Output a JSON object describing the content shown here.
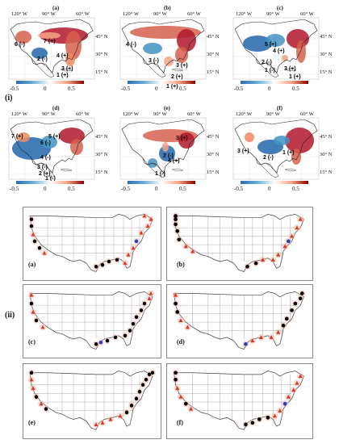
{
  "section_labels": {
    "part_i": "(i)",
    "part_ii": "(ii)"
  },
  "top_panels": [
    {
      "letter": "(a)",
      "regions": [
        "6 (-)",
        "7 (+)",
        "2 (-)",
        "4 (+)",
        "3 (+)",
        "1 (+)"
      ]
    },
    {
      "letter": "(b)",
      "regions": [
        "4 (-)",
        "3 (-)",
        "3 (+)",
        "2 (+)",
        "1 (+)"
      ]
    },
    {
      "letter": "(c)",
      "regions": [
        "5 (+)",
        "4 (+)",
        "2 (-)",
        "1 (-)",
        "3 (+)",
        "1 (+)"
      ]
    },
    {
      "letter": "(d)",
      "regions": [
        "7 (+)",
        "6 (-)",
        "5 (+)",
        "4 (-)",
        "3 (-)",
        "2 (+)",
        "1 (-)"
      ]
    },
    {
      "letter": "(e)",
      "regions": [
        "3 (+)",
        "2 (-)",
        "4 (+)",
        "1 (-)"
      ]
    },
    {
      "letter": "(f)",
      "regions": [
        "3 (+)",
        "2 (-)",
        "1 (+)"
      ]
    }
  ],
  "axes": {
    "lon_labels": [
      "120° W",
      "90° W",
      "60° W"
    ],
    "lat_labels": [
      "45° N",
      "30° N",
      "15° N"
    ]
  },
  "colorbar": {
    "ticks": [
      "-0.5",
      "0",
      "0.5"
    ],
    "low_color": "#2b6cb0",
    "mid_color": "#ffffff",
    "high_color": "#8b0000"
  },
  "bottom_panels": [
    {
      "letter": "(a)"
    },
    {
      "letter": "(b)"
    },
    {
      "letter": "(c)"
    },
    {
      "letter": "(d)"
    },
    {
      "letter": "(e)"
    },
    {
      "letter": "(f)"
    }
  ],
  "marker_colors": {
    "black": "#000000",
    "red": "#d9381e",
    "blue": "#1f3fbf"
  }
}
